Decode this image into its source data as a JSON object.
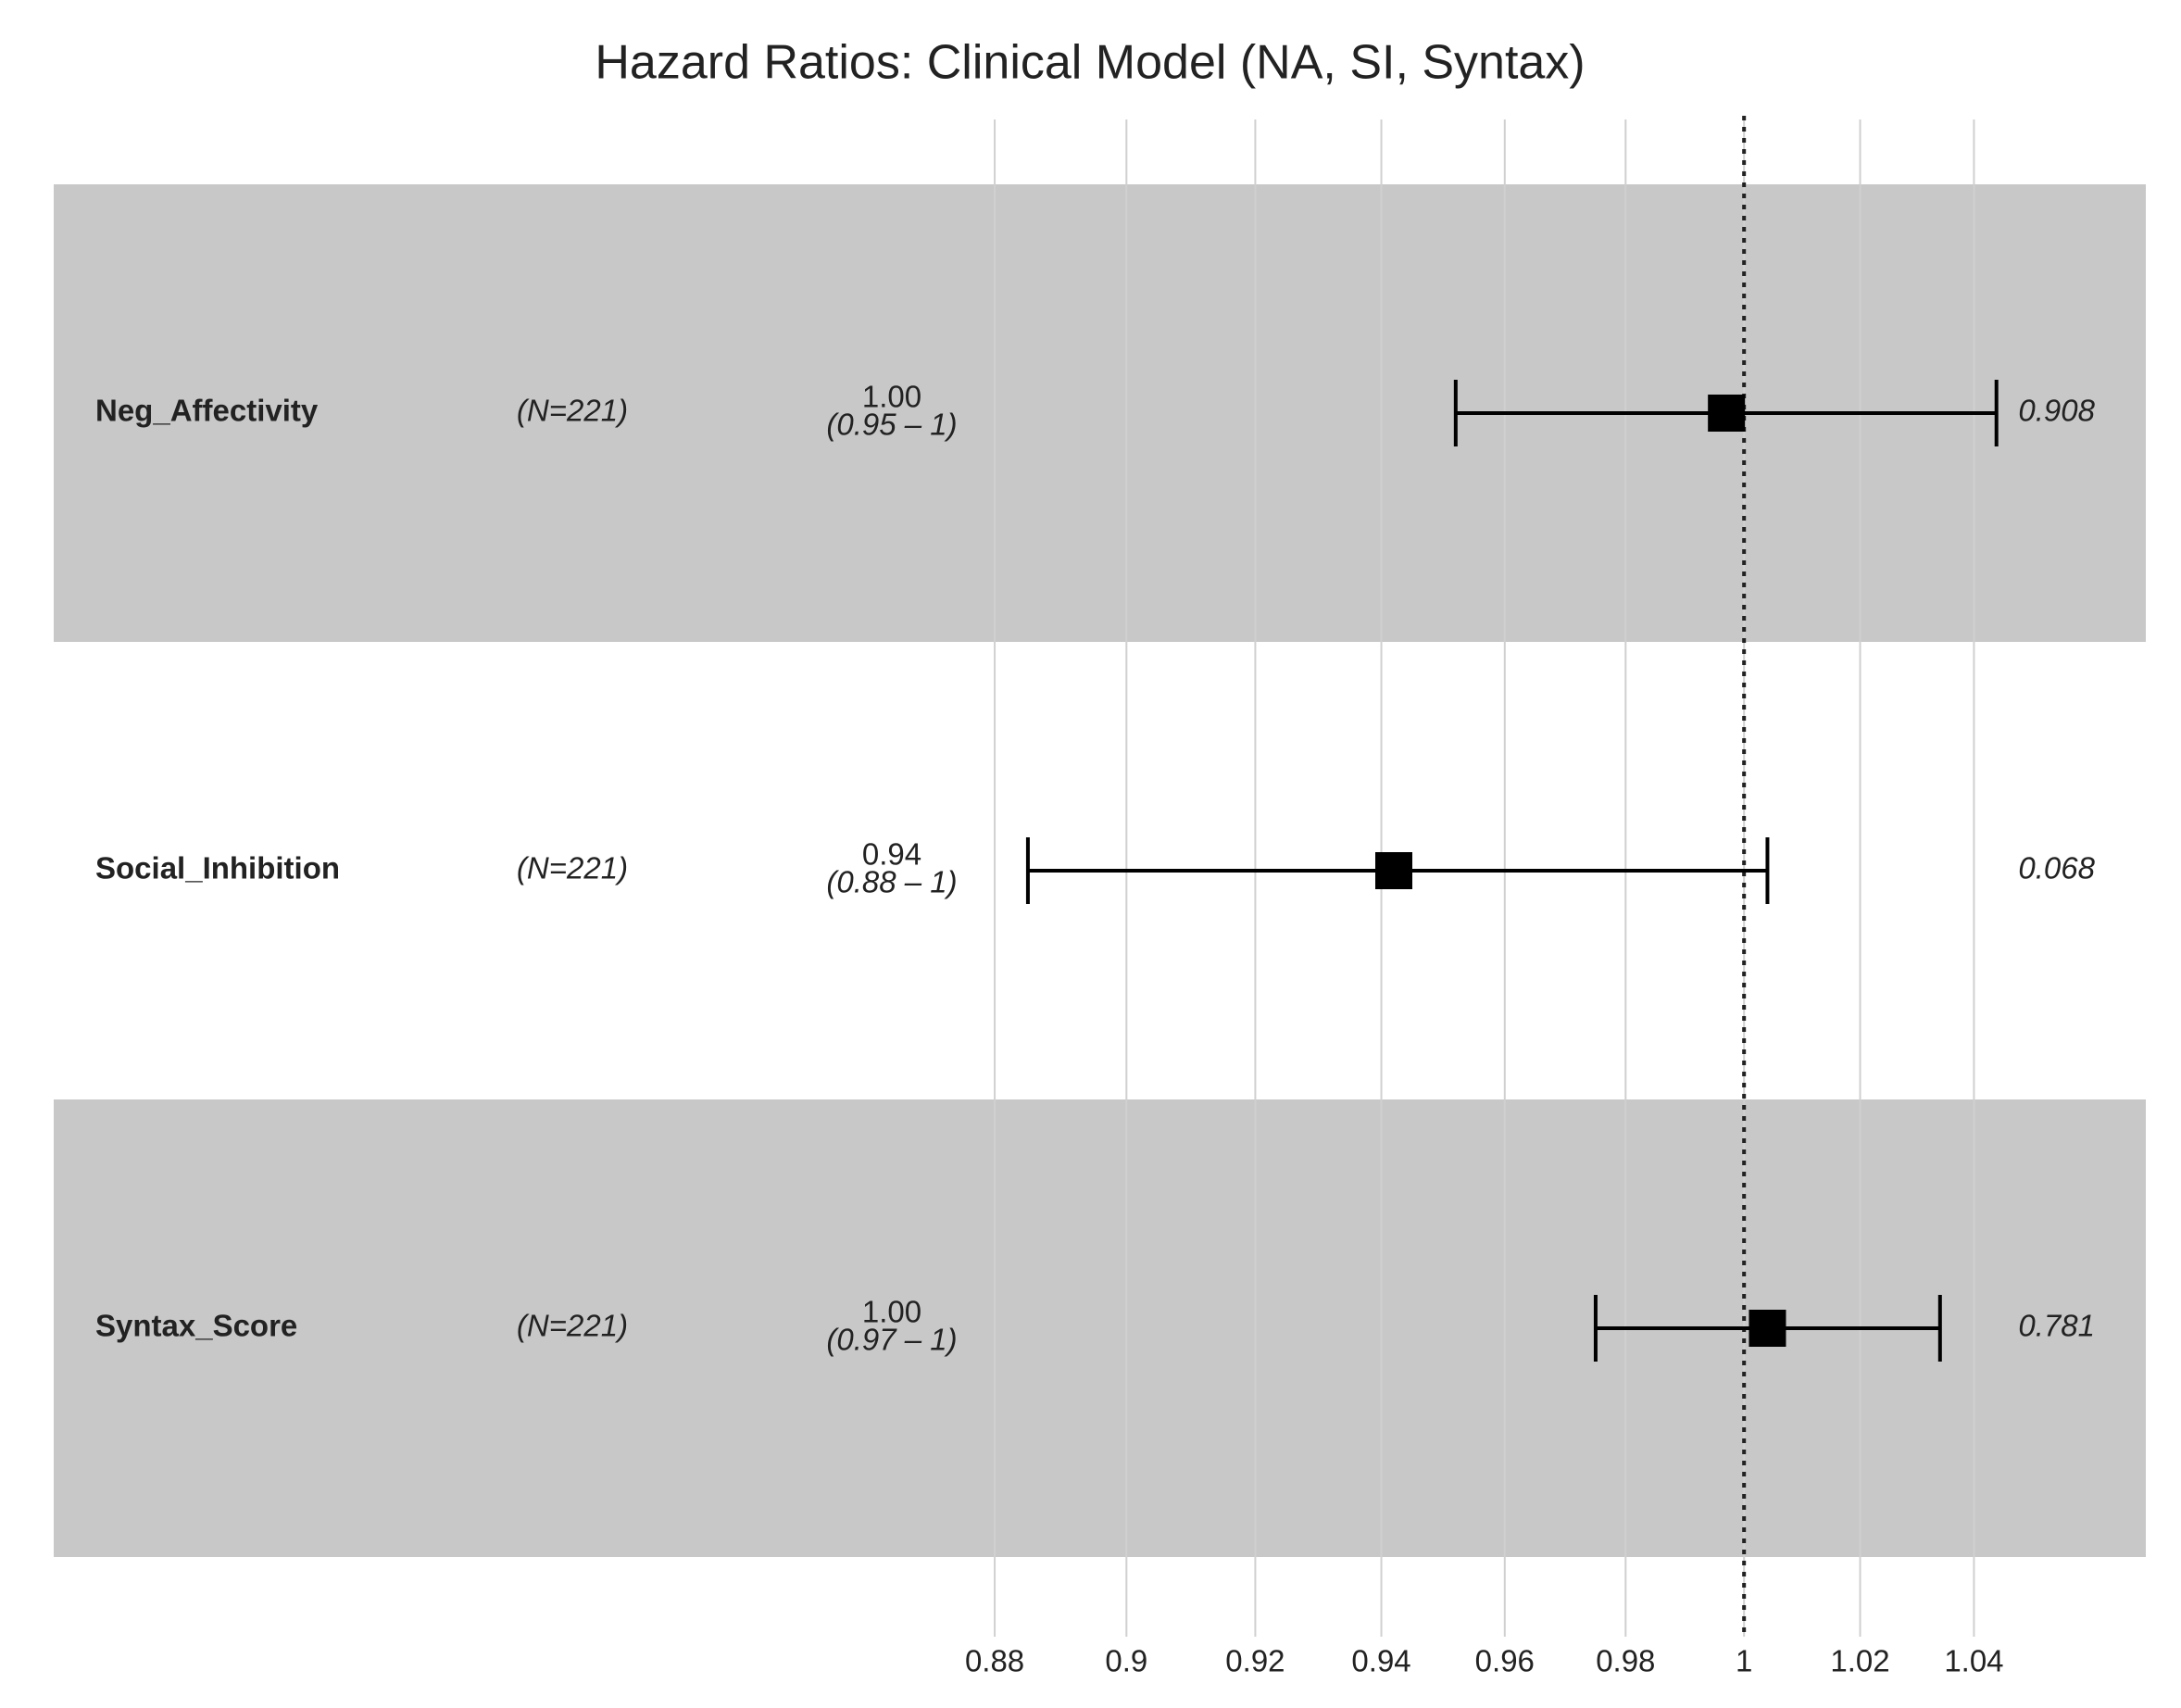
{
  "chart_data": {
    "type": "forest",
    "title": "Hazard Ratios: Clinical Model (NA, SI, Syntax)",
    "categories": [
      "Neg_Affectivity",
      "Social_Inhibition",
      "Syntax_Score"
    ],
    "n_labels": [
      "(N=221)",
      "(N=221)",
      "(N=221)"
    ],
    "values": [
      0.997,
      0.942,
      1.004
    ],
    "value_labels": [
      "1.00",
      "0.94",
      "1.00"
    ],
    "ci_lower": [
      0.952,
      0.885,
      0.975
    ],
    "ci_upper": [
      1.044,
      1.004,
      1.034
    ],
    "ci_labels": [
      "(0.95 – 1)",
      "(0.88 – 1)",
      "(0.97 – 1)"
    ],
    "p_values": [
      0.908,
      0.068,
      0.781
    ],
    "xlim": [
      0.875,
      1.06
    ],
    "xticks": [
      0.88,
      0.9,
      0.92,
      0.94,
      0.96,
      0.98,
      1,
      1.02,
      1.04
    ],
    "log_scale": true,
    "reference_line": 1,
    "grid": true,
    "color": "#000000",
    "band_color": "#c8c8c8"
  }
}
